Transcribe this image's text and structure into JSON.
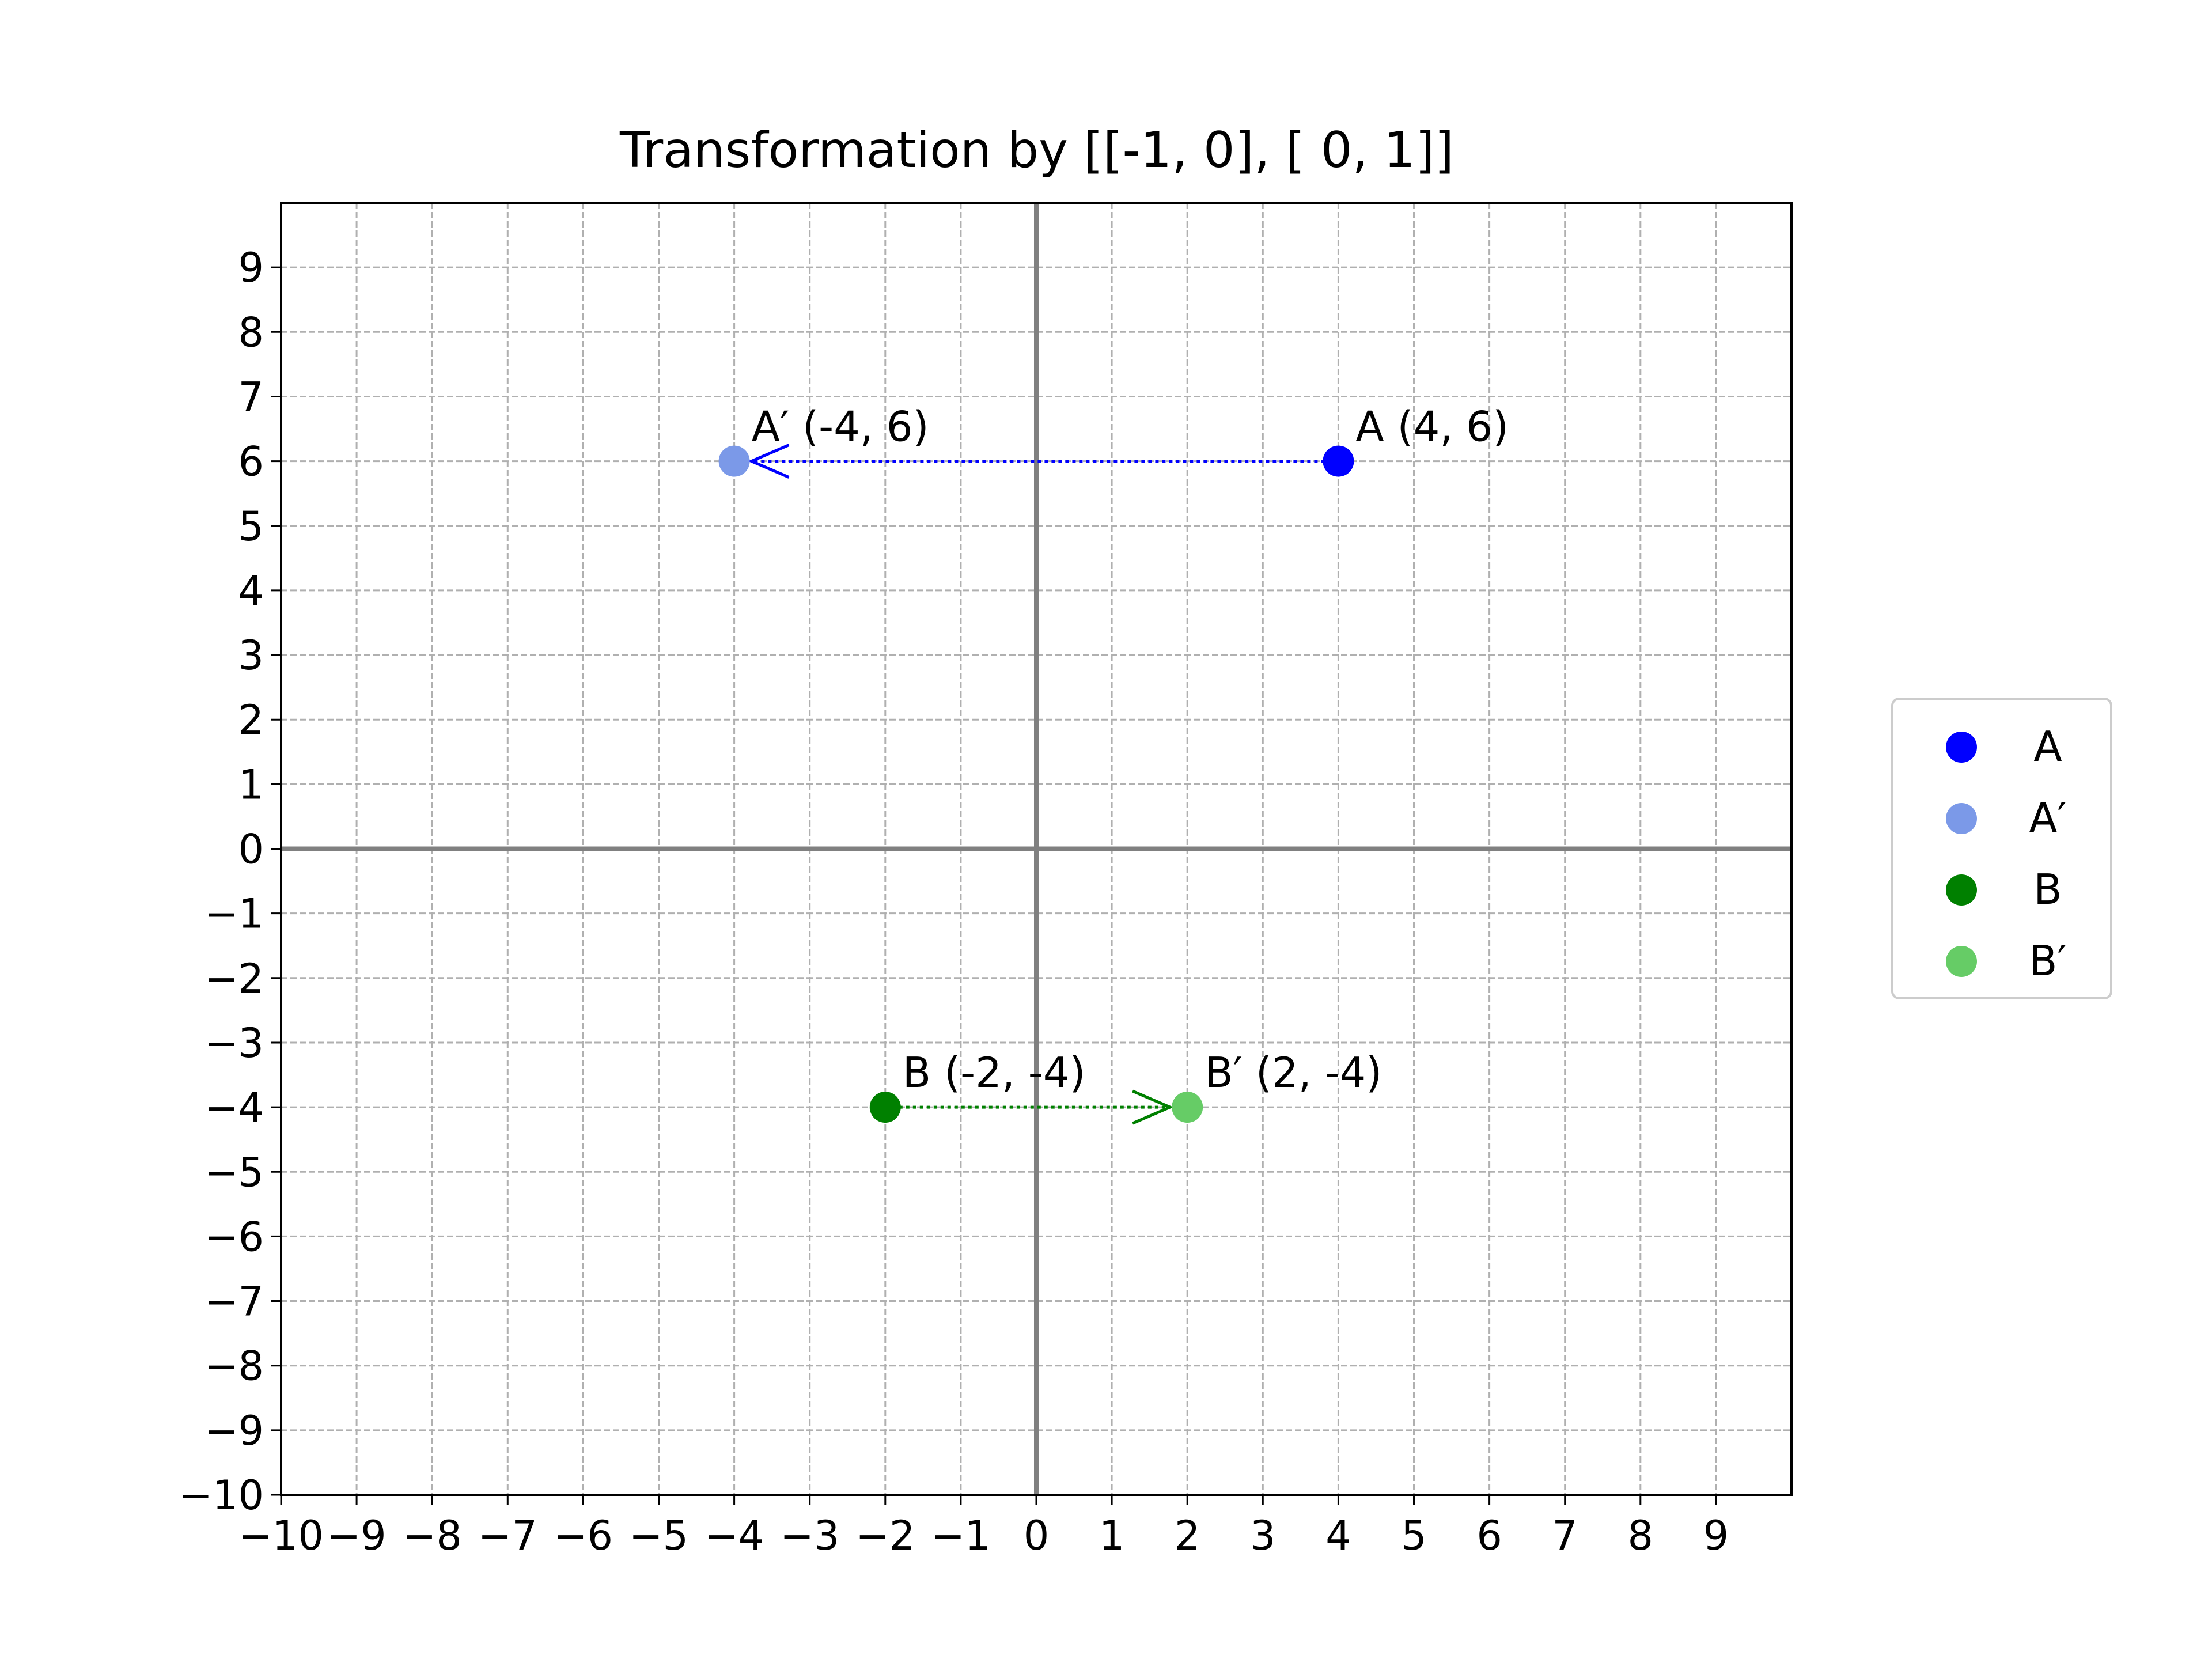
{
  "chart_data": {
    "type": "scatter",
    "title": "Transformation by [[-1,  0],  [ 0,  1]]",
    "xlabel": "",
    "ylabel": "",
    "xlim": [
      -10,
      10
    ],
    "ylim": [
      -10,
      10
    ],
    "x_ticks": [
      -10,
      -9,
      -8,
      -7,
      -6,
      -5,
      -4,
      -3,
      -2,
      -1,
      0,
      1,
      2,
      3,
      4,
      5,
      6,
      7,
      8,
      9
    ],
    "y_ticks": [
      -10,
      -9,
      -8,
      -7,
      -6,
      -5,
      -4,
      -3,
      -2,
      -1,
      0,
      1,
      2,
      3,
      4,
      5,
      6,
      7,
      8,
      9
    ],
    "x_tick_labels": [
      "−10",
      "−9",
      "−8",
      "−7",
      "−6",
      "−5",
      "−4",
      "−3",
      "−2",
      "−1",
      "0",
      "1",
      "2",
      "3",
      "4",
      "5",
      "6",
      "7",
      "8",
      "9"
    ],
    "y_tick_labels": [
      "−10",
      "−9",
      "−8",
      "−7",
      "−6",
      "−5",
      "−4",
      "−3",
      "−2",
      "−1",
      "0",
      "1",
      "2",
      "3",
      "4",
      "5",
      "6",
      "7",
      "8",
      "9"
    ],
    "grid": true,
    "legend_position": "outside-right",
    "series": [
      {
        "name": "A",
        "x": 4,
        "y": 6,
        "color": "#0000ff",
        "label": "A (4, 6)"
      },
      {
        "name": "A′",
        "x": -4,
        "y": 6,
        "color": "#7b99e8",
        "label": "A′ (-4, 6)"
      },
      {
        "name": "B",
        "x": -2,
        "y": -4,
        "color": "#008000",
        "label": "B (-2, -4)"
      },
      {
        "name": "B′",
        "x": 2,
        "y": -4,
        "color": "#66cc66",
        "label": "B′ (2, -4)"
      }
    ],
    "arrows": [
      {
        "from": [
          4,
          6
        ],
        "to": [
          -4,
          6
        ],
        "color": "#0000ff"
      },
      {
        "from": [
          -2,
          -4
        ],
        "to": [
          2,
          -4
        ],
        "color": "#008000"
      }
    ]
  }
}
